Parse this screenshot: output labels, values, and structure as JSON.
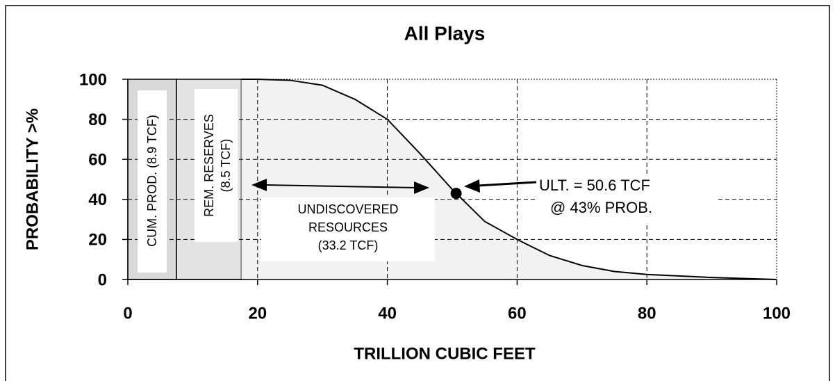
{
  "chart_data": {
    "type": "line",
    "title": "All Plays",
    "xlabel": "TRILLION CUBIC FEET",
    "ylabel": "PROBABILITY >%",
    "xlim": [
      0,
      100
    ],
    "ylim": [
      0,
      100
    ],
    "xticks": [
      0,
      20,
      40,
      60,
      80,
      100
    ],
    "yticks": [
      0,
      20,
      40,
      60,
      80,
      100
    ],
    "grid": true,
    "series": [
      {
        "x": [
          17.5,
          20,
          25,
          30,
          35,
          40,
          45,
          50,
          55,
          60,
          65,
          70,
          75,
          80,
          90,
          100
        ],
        "values": [
          100,
          100,
          99.5,
          97,
          90,
          80,
          63,
          45,
          29,
          20,
          12,
          7,
          4,
          2.5,
          1,
          0
        ],
        "color": "#000000",
        "fill": "#f2f2f2"
      }
    ],
    "blocks": [
      {
        "width": 7.5,
        "color": "#d9d9d9"
      },
      {
        "width": 10,
        "color": "#e3e3e3"
      }
    ],
    "point": {
      "x": 50.6,
      "y": 43
    },
    "annotations": {
      "cum_prod": "CUM. PROD. (8.9 TCF)",
      "rem_reserves": [
        "REM. RESERVES",
        "(8.5 TCF)"
      ],
      "undiscovered": [
        "UNDISCOVERED",
        "RESOURCES",
        "(33.2 TCF)"
      ],
      "ult": [
        "ULT. = 50.6 TCF",
        "@ 43% PROB."
      ]
    }
  }
}
